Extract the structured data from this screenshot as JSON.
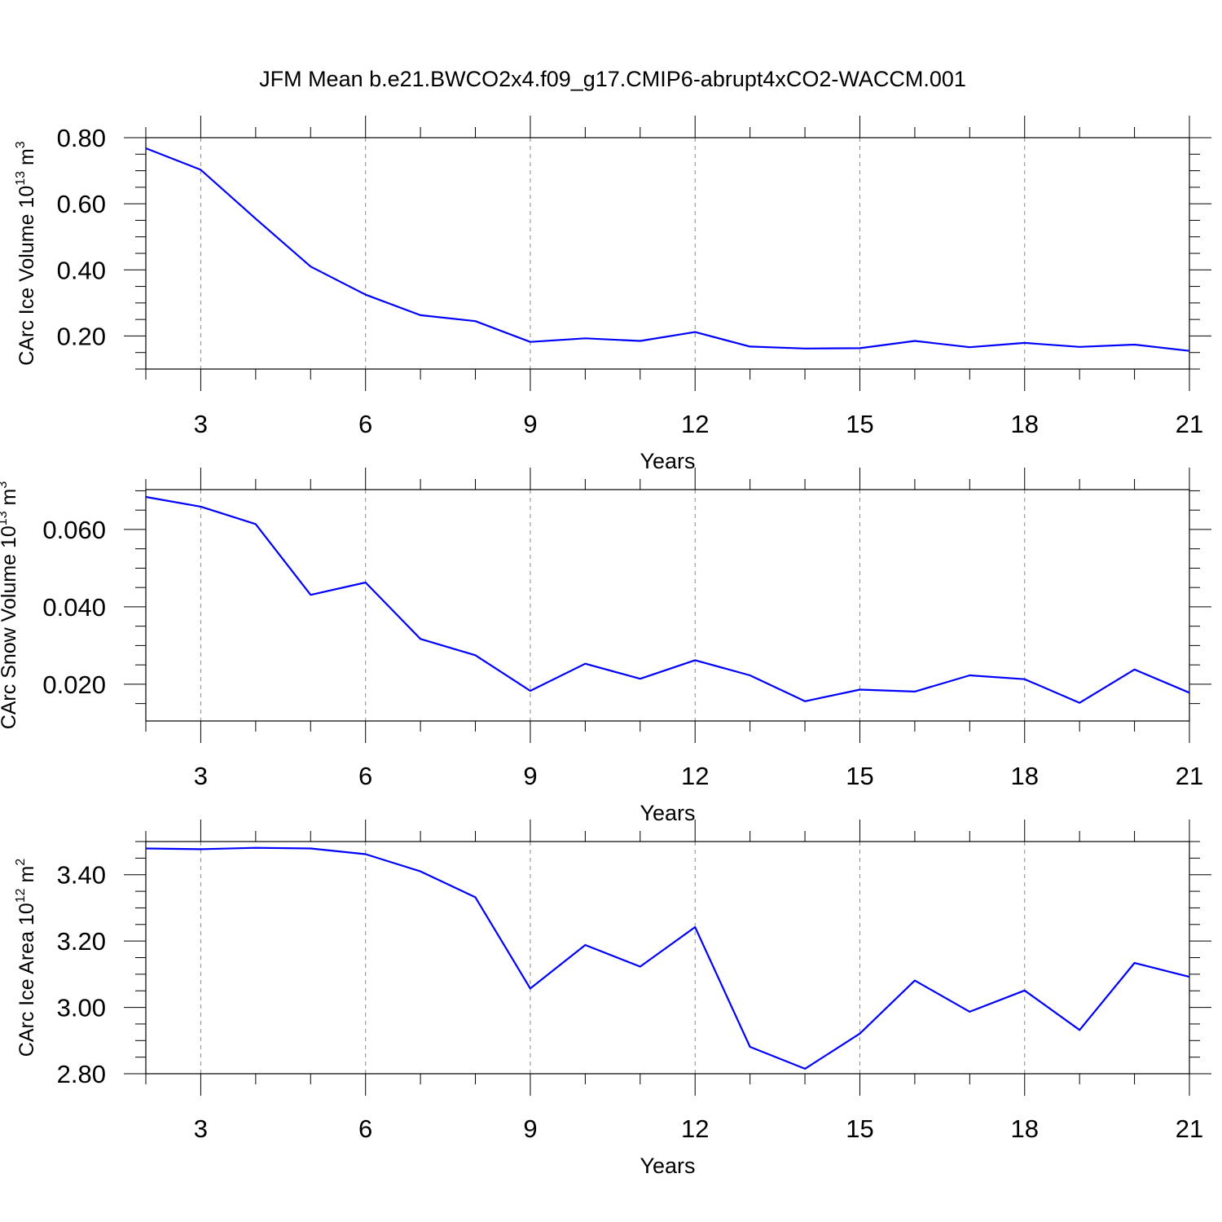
{
  "figure": {
    "title": "JFM Mean b.e21.BWCO2x4.f09_g17.CMIP6-abrupt4xCO2-WACCM.001",
    "line_color": "#0000ff",
    "grid_color": "#888888"
  },
  "chart_data": [
    {
      "type": "line",
      "ylabel": {
        "base": "CArc Ice Volume 10",
        "exp": "13",
        "unit": " m",
        "unit_exp": "3"
      },
      "xlabel": "Years",
      "xlim": [
        2,
        21
      ],
      "ylim": [
        0.1,
        0.8
      ],
      "x_ticks": [
        3,
        6,
        9,
        12,
        15,
        18,
        21
      ],
      "y_ticks": [
        0.2,
        0.4,
        0.6,
        0.8
      ],
      "y_tick_labels": [
        "0.20",
        "0.40",
        "0.60",
        "0.80"
      ],
      "y_minor_step": 0.05,
      "x": [
        2,
        3,
        4,
        5,
        6,
        7,
        8,
        9,
        10,
        11,
        12,
        13,
        14,
        15,
        16,
        17,
        18,
        19,
        20,
        21
      ],
      "values": [
        0.768,
        0.703,
        0.555,
        0.41,
        0.325,
        0.263,
        0.245,
        0.182,
        0.193,
        0.185,
        0.212,
        0.168,
        0.162,
        0.163,
        0.185,
        0.166,
        0.179,
        0.167,
        0.174,
        0.155
      ]
    },
    {
      "type": "line",
      "ylabel": {
        "base": "CArc Snow Volume 10",
        "exp": "13",
        "unit": " m",
        "unit_exp": "3"
      },
      "xlabel": "Years",
      "xlim": [
        2,
        21
      ],
      "ylim": [
        0.0105,
        0.0703
      ],
      "x_ticks": [
        3,
        6,
        9,
        12,
        15,
        18,
        21
      ],
      "y_ticks": [
        0.02,
        0.04,
        0.06
      ],
      "y_tick_labels": [
        "0.020",
        "0.040",
        "0.060"
      ],
      "y_minor_step": 0.005,
      "x": [
        2,
        3,
        4,
        5,
        6,
        7,
        8,
        9,
        10,
        11,
        12,
        13,
        14,
        15,
        16,
        17,
        18,
        19,
        20,
        21
      ],
      "values": [
        0.0684,
        0.0659,
        0.0614,
        0.0431,
        0.0463,
        0.0317,
        0.0275,
        0.0183,
        0.0253,
        0.0214,
        0.0262,
        0.0223,
        0.0156,
        0.0186,
        0.0181,
        0.0223,
        0.0213,
        0.0152,
        0.0238,
        0.0178
      ]
    },
    {
      "type": "line",
      "ylabel": {
        "base": "CArc Ice Area 10",
        "exp": "12",
        "unit": " m",
        "unit_exp": "2"
      },
      "xlabel": "Years",
      "xlim": [
        2,
        21
      ],
      "ylim": [
        2.8,
        3.5
      ],
      "x_ticks": [
        3,
        6,
        9,
        12,
        15,
        18,
        21
      ],
      "y_ticks": [
        2.8,
        3.0,
        3.2,
        3.4
      ],
      "y_tick_labels": [
        "2.80",
        "3.00",
        "3.20",
        "3.40"
      ],
      "y_minor_step": 0.05,
      "x": [
        2,
        3,
        4,
        5,
        6,
        7,
        8,
        9,
        10,
        11,
        12,
        13,
        14,
        15,
        16,
        17,
        18,
        19,
        20,
        21
      ],
      "values": [
        3.479,
        3.477,
        3.481,
        3.479,
        3.462,
        3.41,
        3.332,
        3.057,
        3.188,
        3.123,
        3.242,
        2.881,
        2.815,
        2.921,
        3.081,
        2.987,
        3.051,
        2.932,
        3.134,
        3.092
      ]
    }
  ]
}
